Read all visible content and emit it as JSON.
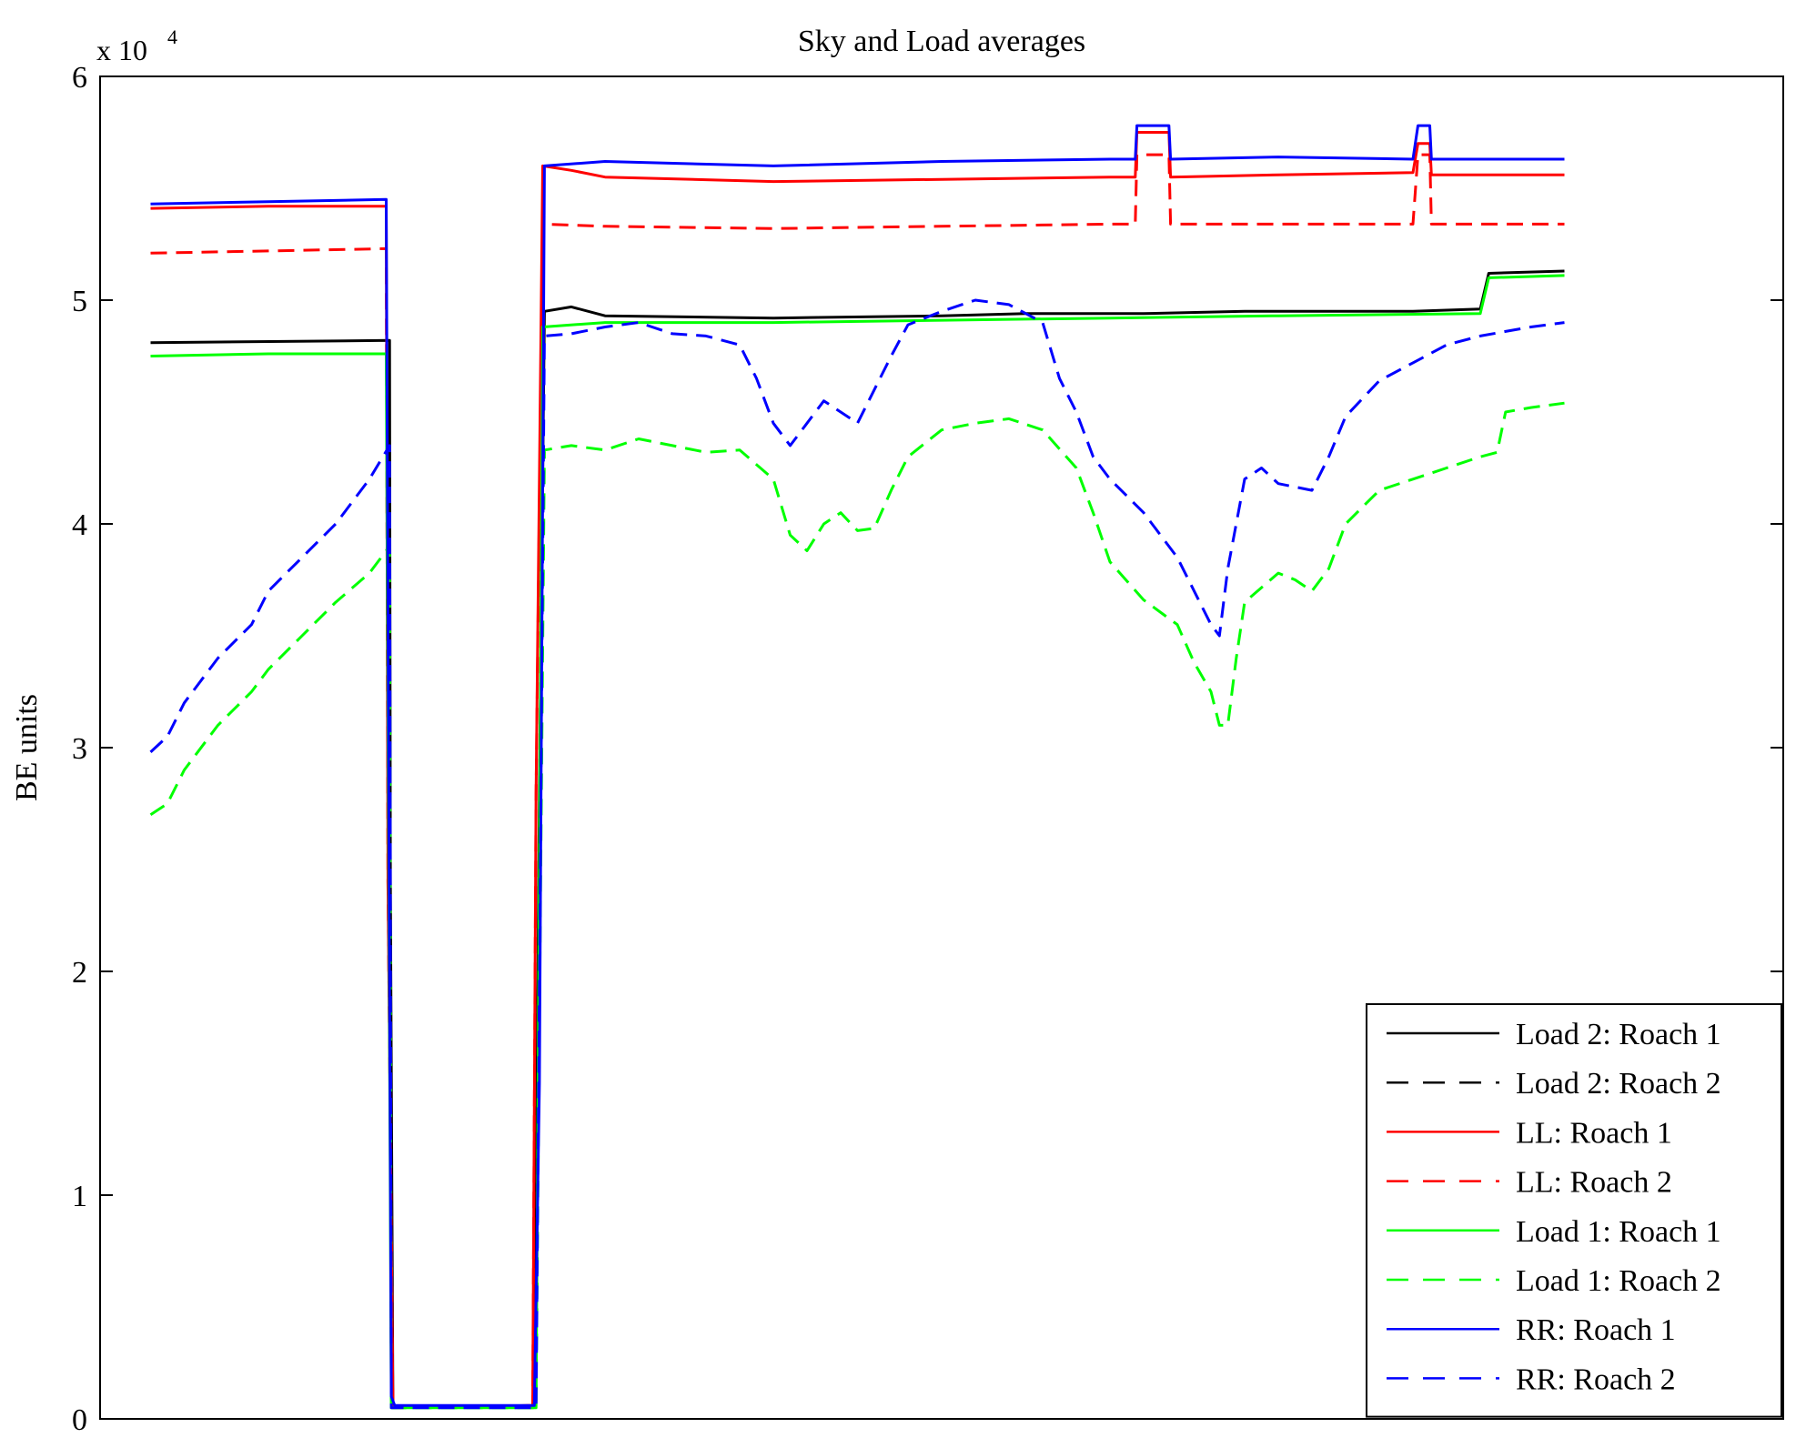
{
  "chart_data": {
    "type": "line",
    "title": "Sky and Load averages",
    "xlabel": "",
    "ylabel": "BE units",
    "y_multiplier": {
      "base": "x 10",
      "exponent": "4"
    },
    "ylim": [
      0,
      60000
    ],
    "xlim": [
      0,
      100
    ],
    "yticks": [
      0,
      10000,
      20000,
      30000,
      40000,
      50000,
      60000
    ],
    "ytick_labels": [
      "0",
      "1",
      "2",
      "3",
      "4",
      "5",
      "6"
    ],
    "legend_position": "bottom-right",
    "series": [
      {
        "name": "Load 2: Roach 1",
        "color": "#000000",
        "dash": "solid",
        "points": [
          [
            3,
            48100
          ],
          [
            17.2,
            48200
          ],
          [
            17.25,
            24000
          ],
          [
            17.4,
            500
          ],
          [
            25.8,
            600
          ],
          [
            26.1,
            28000
          ],
          [
            26.4,
            49500
          ],
          [
            28,
            49700
          ],
          [
            30,
            49300
          ],
          [
            40,
            49200
          ],
          [
            50,
            49300
          ],
          [
            55,
            49400
          ],
          [
            62,
            49400
          ],
          [
            68,
            49500
          ],
          [
            78,
            49500
          ],
          [
            82,
            49600
          ],
          [
            82.5,
            51200
          ],
          [
            87,
            51300
          ]
        ]
      },
      {
        "name": "Load 2: Roach 2",
        "color": "#000000",
        "dash": "dashed",
        "points": []
      },
      {
        "name": "LL: Roach 1",
        "color": "#ff0000",
        "dash": "solid",
        "points": [
          [
            3,
            54100
          ],
          [
            10,
            54200
          ],
          [
            17,
            54200
          ],
          [
            17.1,
            24000
          ],
          [
            17.4,
            500
          ],
          [
            25.7,
            600
          ],
          [
            25.9,
            28000
          ],
          [
            26.3,
            56000
          ],
          [
            28,
            55800
          ],
          [
            30,
            55500
          ],
          [
            40,
            55300
          ],
          [
            50,
            55400
          ],
          [
            60,
            55500
          ],
          [
            61.5,
            55500
          ],
          [
            61.6,
            57500
          ],
          [
            63.5,
            57500
          ],
          [
            63.6,
            55500
          ],
          [
            70,
            55600
          ],
          [
            78,
            55700
          ],
          [
            78.3,
            57000
          ],
          [
            79,
            57000
          ],
          [
            79.1,
            55600
          ],
          [
            87,
            55600
          ]
        ]
      },
      {
        "name": "LL: Roach 2",
        "color": "#ff0000",
        "dash": "dashed",
        "points": [
          [
            3,
            52100
          ],
          [
            10,
            52200
          ],
          [
            17,
            52300
          ],
          [
            17.1,
            24000
          ],
          [
            17.4,
            500
          ],
          [
            25.7,
            600
          ],
          [
            25.9,
            28000
          ],
          [
            26.3,
            53400
          ],
          [
            30,
            53300
          ],
          [
            40,
            53200
          ],
          [
            50,
            53300
          ],
          [
            60,
            53400
          ],
          [
            61.5,
            53400
          ],
          [
            61.6,
            56500
          ],
          [
            63.5,
            56500
          ],
          [
            63.6,
            53400
          ],
          [
            70,
            53400
          ],
          [
            78,
            53400
          ],
          [
            78.3,
            56500
          ],
          [
            79,
            56500
          ],
          [
            79.1,
            53400
          ],
          [
            87,
            53400
          ]
        ]
      },
      {
        "name": "Load 1: Roach 1",
        "color": "#00ff00",
        "dash": "solid",
        "points": [
          [
            3,
            47500
          ],
          [
            10,
            47600
          ],
          [
            17,
            47600
          ],
          [
            17.3,
            500
          ],
          [
            25.9,
            500
          ],
          [
            26.3,
            48800
          ],
          [
            30,
            49000
          ],
          [
            40,
            49000
          ],
          [
            50,
            49100
          ],
          [
            60,
            49200
          ],
          [
            70,
            49300
          ],
          [
            82,
            49400
          ],
          [
            82.5,
            51000
          ],
          [
            87,
            51100
          ]
        ]
      },
      {
        "name": "Load 1: Roach 2",
        "color": "#00ff00",
        "dash": "dashed",
        "points": [
          [
            3,
            27000
          ],
          [
            4,
            27500
          ],
          [
            5,
            29000
          ],
          [
            7,
            31000
          ],
          [
            9,
            32500
          ],
          [
            10,
            33500
          ],
          [
            12,
            35000
          ],
          [
            14,
            36500
          ],
          [
            16,
            37800
          ],
          [
            17.2,
            39000
          ],
          [
            17.3,
            500
          ],
          [
            25.9,
            500
          ],
          [
            26.4,
            43300
          ],
          [
            28,
            43500
          ],
          [
            30,
            43300
          ],
          [
            32,
            43800
          ],
          [
            34,
            43500
          ],
          [
            36,
            43200
          ],
          [
            38,
            43300
          ],
          [
            40,
            42000
          ],
          [
            41,
            39500
          ],
          [
            42,
            38800
          ],
          [
            43,
            40000
          ],
          [
            44,
            40500
          ],
          [
            45,
            39700
          ],
          [
            46,
            39800
          ],
          [
            47,
            41500
          ],
          [
            48,
            43000
          ],
          [
            50,
            44200
          ],
          [
            52,
            44500
          ],
          [
            54,
            44700
          ],
          [
            56,
            44200
          ],
          [
            58,
            42500
          ],
          [
            59,
            40500
          ],
          [
            60,
            38300
          ],
          [
            62,
            36600
          ],
          [
            64,
            35500
          ],
          [
            65,
            33800
          ],
          [
            66,
            32500
          ],
          [
            66.5,
            31000
          ],
          [
            67,
            31000
          ],
          [
            67.5,
            34000
          ],
          [
            68,
            36500
          ],
          [
            70,
            37800
          ],
          [
            71,
            37500
          ],
          [
            72,
            37000
          ],
          [
            73,
            38000
          ],
          [
            74,
            40000
          ],
          [
            76,
            41500
          ],
          [
            78,
            42000
          ],
          [
            80,
            42500
          ],
          [
            82,
            43000
          ],
          [
            83,
            43200
          ],
          [
            83.5,
            45000
          ],
          [
            85,
            45200
          ],
          [
            87,
            45400
          ]
        ]
      },
      {
        "name": "RR: Roach 1",
        "color": "#0000ff",
        "dash": "solid",
        "points": [
          [
            3,
            54300
          ],
          [
            10,
            54400
          ],
          [
            17,
            54500
          ],
          [
            17.3,
            1000
          ],
          [
            17.5,
            600
          ],
          [
            25.8,
            600
          ],
          [
            26.1,
            15000
          ],
          [
            26.4,
            56000
          ],
          [
            30,
            56200
          ],
          [
            40,
            56000
          ],
          [
            50,
            56200
          ],
          [
            60,
            56300
          ],
          [
            61.5,
            56300
          ],
          [
            61.6,
            57800
          ],
          [
            63.5,
            57800
          ],
          [
            63.6,
            56300
          ],
          [
            70,
            56400
          ],
          [
            78,
            56300
          ],
          [
            78.3,
            57800
          ],
          [
            79,
            57800
          ],
          [
            79.1,
            56300
          ],
          [
            87,
            56300
          ]
        ]
      },
      {
        "name": "RR: Roach 2",
        "color": "#0000ff",
        "dash": "dashed",
        "points": [
          [
            3,
            29800
          ],
          [
            4,
            30500
          ],
          [
            5,
            32000
          ],
          [
            7,
            34000
          ],
          [
            9,
            35500
          ],
          [
            10,
            37000
          ],
          [
            12,
            38500
          ],
          [
            14,
            40000
          ],
          [
            16,
            42000
          ],
          [
            17.2,
            43500
          ],
          [
            17.3,
            500
          ],
          [
            25.9,
            500
          ],
          [
            26.4,
            48400
          ],
          [
            28,
            48500
          ],
          [
            30,
            48800
          ],
          [
            32,
            49000
          ],
          [
            34,
            48500
          ],
          [
            36,
            48400
          ],
          [
            38,
            48000
          ],
          [
            39,
            46500
          ],
          [
            40,
            44500
          ],
          [
            41,
            43500
          ],
          [
            42,
            44500
          ],
          [
            43,
            45500
          ],
          [
            44,
            45000
          ],
          [
            45,
            44500
          ],
          [
            46,
            46000
          ],
          [
            47,
            47500
          ],
          [
            48,
            48900
          ],
          [
            50,
            49500
          ],
          [
            52,
            50000
          ],
          [
            54,
            49800
          ],
          [
            56,
            49000
          ],
          [
            57,
            46500
          ],
          [
            58,
            45000
          ],
          [
            59,
            43000
          ],
          [
            60,
            42000
          ],
          [
            62,
            40500
          ],
          [
            64,
            38500
          ],
          [
            65,
            37000
          ],
          [
            66,
            35500
          ],
          [
            66.5,
            35000
          ],
          [
            67,
            38000
          ],
          [
            68,
            42000
          ],
          [
            69,
            42500
          ],
          [
            70,
            41800
          ],
          [
            72,
            41500
          ],
          [
            73,
            43000
          ],
          [
            74,
            44800
          ],
          [
            76,
            46400
          ],
          [
            78,
            47200
          ],
          [
            80,
            48000
          ],
          [
            82,
            48400
          ],
          [
            83.5,
            48600
          ],
          [
            85,
            48800
          ],
          [
            87,
            49000
          ]
        ]
      }
    ]
  }
}
